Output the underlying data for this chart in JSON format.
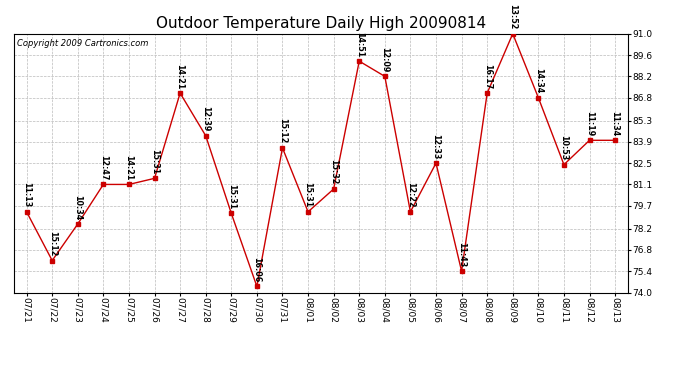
{
  "title": "Outdoor Temperature Daily High 20090814",
  "copyright": "Copyright 2009 Cartronics.com",
  "dates": [
    "07/21",
    "07/22",
    "07/23",
    "07/24",
    "07/25",
    "07/26",
    "07/27",
    "07/28",
    "07/29",
    "07/30",
    "07/31",
    "08/01",
    "08/02",
    "08/03",
    "08/04",
    "08/05",
    "08/06",
    "08/07",
    "08/08",
    "08/09",
    "08/10",
    "08/11",
    "08/12",
    "08/13"
  ],
  "values": [
    79.3,
    76.1,
    78.5,
    81.1,
    81.1,
    81.5,
    87.1,
    84.3,
    79.2,
    74.4,
    83.5,
    79.3,
    80.8,
    89.2,
    88.2,
    79.3,
    82.5,
    75.4,
    87.1,
    91.0,
    86.8,
    82.4,
    84.0,
    84.0
  ],
  "times": [
    "11:13",
    "15:12",
    "10:34",
    "12:47",
    "14:21",
    "15:31",
    "14:21",
    "12:39",
    "15:31",
    "16:06",
    "15:12",
    "15:31",
    "15:32",
    "14:51",
    "12:09",
    "12:22",
    "12:33",
    "11:43",
    "16:17",
    "13:52",
    "14:34",
    "10:53",
    "11:19",
    "11:34"
  ],
  "ylim": [
    74.0,
    91.0
  ],
  "yticks": [
    74.0,
    75.4,
    76.8,
    78.2,
    79.7,
    81.1,
    82.5,
    83.9,
    85.3,
    86.8,
    88.2,
    89.6,
    91.0
  ],
  "line_color": "#cc0000",
  "marker_color": "#cc0000",
  "bg_color": "#ffffff",
  "grid_color": "#bbbbbb",
  "title_fontsize": 11,
  "tick_fontsize": 6.5,
  "annot_fontsize": 5.8,
  "copyright_fontsize": 6.0
}
